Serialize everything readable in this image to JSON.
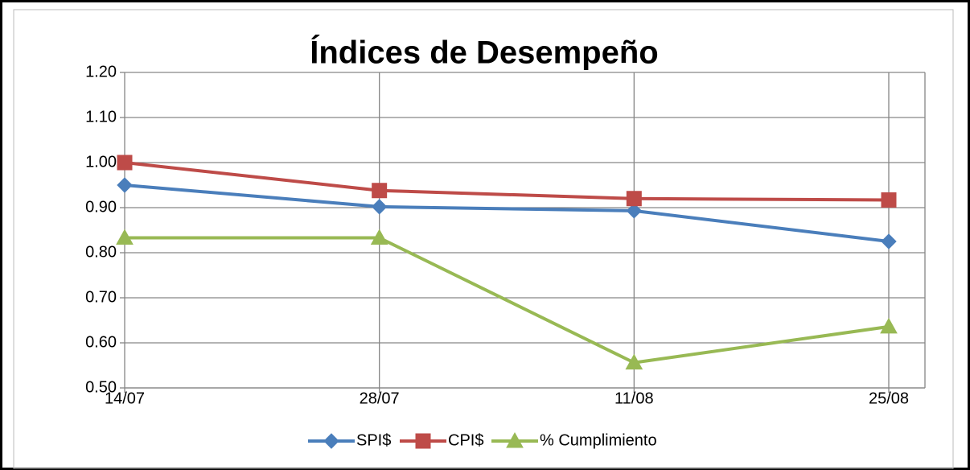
{
  "chart_data": {
    "type": "line",
    "title": "Índices de Desempeño",
    "categories": [
      "14/07",
      "28/07",
      "11/08",
      "25/08"
    ],
    "series": [
      {
        "name": "SPI$",
        "color": "#4a7ebb",
        "marker": "diamond",
        "values": [
          0.95,
          0.902,
          0.893,
          0.825
        ]
      },
      {
        "name": "CPI$",
        "color": "#be4b48",
        "marker": "square",
        "values": [
          1.0,
          0.938,
          0.92,
          0.917
        ]
      },
      {
        "name": "% Cumplimiento",
        "color": "#98b954",
        "marker": "triangle",
        "values": [
          0.833,
          0.833,
          0.556,
          0.636
        ]
      }
    ],
    "ylim": [
      0.5,
      1.2
    ],
    "yticks": [
      {
        "value": 0.5,
        "label": "0.50"
      },
      {
        "value": 0.6,
        "label": "0.60"
      },
      {
        "value": 0.7,
        "label": "0.70"
      },
      {
        "value": 0.8,
        "label": "0.80"
      },
      {
        "value": 0.9,
        "label": "0.90"
      },
      {
        "value": 1.0,
        "label": "1.00"
      },
      {
        "value": 1.1,
        "label": "1.10"
      },
      {
        "value": 1.2,
        "label": "1.20"
      }
    ],
    "grid": true,
    "legend": "bottom"
  }
}
